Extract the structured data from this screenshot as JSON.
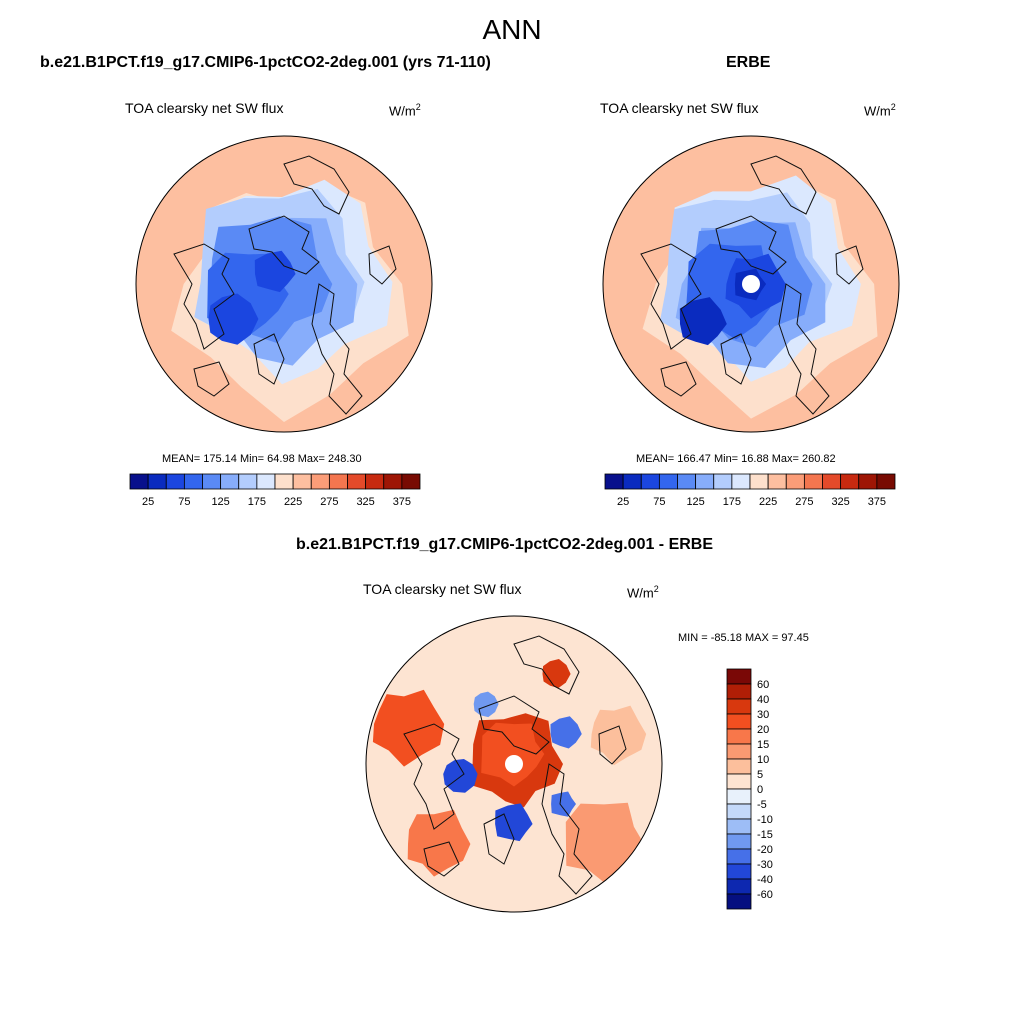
{
  "page_title": "ANN",
  "top_left": {
    "title": "b.e21.B1PCT.f19_g17.CMIP6-1pctCO2-2deg.001 (yrs 71-110)",
    "variable": "TOA clearsky net SW flux",
    "units_base": "W/m",
    "units_exp": "2",
    "stats": "MEAN= 175.14  Min=  64.98  Max= 248.30"
  },
  "top_right": {
    "title": "ERBE",
    "variable": "TOA clearsky net SW flux",
    "units_base": "W/m",
    "units_exp": "2",
    "stats": "MEAN= 166.47  Min=  16.88  Max= 260.82"
  },
  "bottom": {
    "title": "b.e21.B1PCT.f19_g17.CMIP6-1pctCO2-2deg.001 - ERBE",
    "variable": "TOA clearsky net SW flux",
    "units_base": "W/m",
    "units_exp": "2",
    "stats": "MIN = -85.18 MAX =  97.45"
  },
  "chart_data": [
    {
      "type": "heatmap",
      "projection": "north-polar-stereographic",
      "title": "b.e21.B1PCT.f19_g17.CMIP6-1pctCO2-2deg.001 (yrs 71-110)",
      "subtitle": "TOA clearsky net SW flux",
      "units": "W/m2",
      "mean": 175.14,
      "min": 64.98,
      "max": 248.3,
      "colorbar": {
        "levels": [
          25,
          50,
          75,
          100,
          125,
          150,
          175,
          200,
          225,
          250,
          275,
          300,
          325,
          350,
          375
        ],
        "tick_labels": [
          "25",
          "75",
          "125",
          "175",
          "225",
          "275",
          "325",
          "375"
        ],
        "colors": [
          "#08108c",
          "#0a2bbf",
          "#1b46e0",
          "#3366ee",
          "#5a8af5",
          "#87adfb",
          "#b3cdfd",
          "#dbe8fe",
          "#fde0cc",
          "#fdbfa0",
          "#fb9d78",
          "#f4764f",
          "#e44a2a",
          "#c72a10",
          "#9e1605",
          "#780b02"
        ]
      }
    },
    {
      "type": "heatmap",
      "projection": "north-polar-stereographic",
      "title": "ERBE",
      "subtitle": "TOA clearsky net SW flux",
      "units": "W/m2",
      "mean": 166.47,
      "min": 16.88,
      "max": 260.82,
      "colorbar": {
        "levels": [
          25,
          50,
          75,
          100,
          125,
          150,
          175,
          200,
          225,
          250,
          275,
          300,
          325,
          350,
          375
        ],
        "tick_labels": [
          "25",
          "75",
          "125",
          "175",
          "225",
          "275",
          "325",
          "375"
        ],
        "colors": [
          "#08108c",
          "#0a2bbf",
          "#1b46e0",
          "#3366ee",
          "#5a8af5",
          "#87adfb",
          "#b3cdfd",
          "#dbe8fe",
          "#fde0cc",
          "#fdbfa0",
          "#fb9d78",
          "#f4764f",
          "#e44a2a",
          "#c72a10",
          "#9e1605",
          "#780b02"
        ]
      }
    },
    {
      "type": "heatmap",
      "projection": "north-polar-stereographic",
      "title": "b.e21.B1PCT.f19_g17.CMIP6-1pctCO2-2deg.001 - ERBE",
      "subtitle": "TOA clearsky net SW flux",
      "units": "W/m2",
      "min": -85.18,
      "max": 97.45,
      "colorbar": {
        "orientation": "vertical",
        "levels": [
          60,
          40,
          30,
          20,
          15,
          10,
          5,
          0,
          -5,
          -10,
          -15,
          -20,
          -30,
          -40,
          -60
        ],
        "tick_labels": [
          "60",
          "40",
          "30",
          "20",
          "15",
          "10",
          "5",
          "0",
          "-5",
          "-10",
          "-15",
          "-20",
          "-30",
          "-40",
          "-60"
        ],
        "colors": [
          "#7a0806",
          "#b01e06",
          "#d8380e",
          "#f24f20",
          "#f8774a",
          "#fa9a72",
          "#fcbf9c",
          "#fde4d2",
          "#e8f1fb",
          "#c4d9f9",
          "#9dbdf6",
          "#7099f0",
          "#4670e8",
          "#2247d8",
          "#0d28b0",
          "#050f80"
        ]
      }
    }
  ]
}
